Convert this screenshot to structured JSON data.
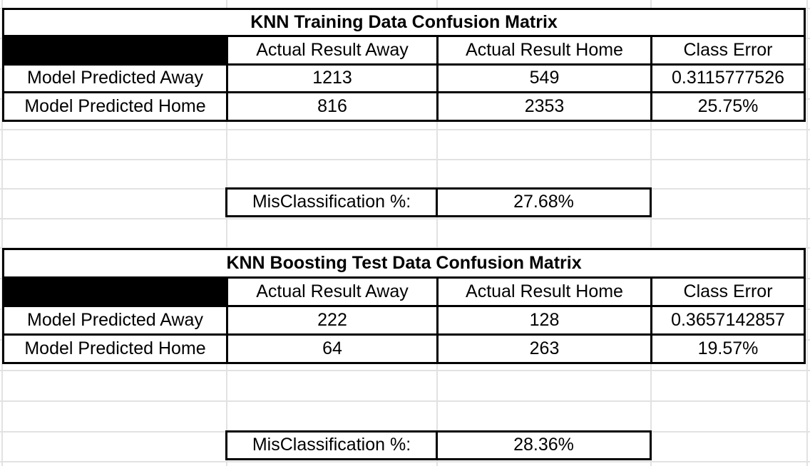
{
  "sheet": {
    "background_color": "#ffffff",
    "gridline_color": "#e2e2e2",
    "table_border_color": "#000000",
    "corner_cell_fill": "#000000"
  },
  "tables": [
    {
      "title": "KNN Training Data Confusion Matrix",
      "column_headers": [
        "",
        "Actual Result Away",
        "Actual Result Home",
        "Class Error"
      ],
      "rows": [
        {
          "label": "Model Predicted Away",
          "values": [
            "1213",
            "549",
            "0.3115777526"
          ]
        },
        {
          "label": "Model Predicted Home",
          "values": [
            "816",
            "2353",
            "25.75%"
          ]
        }
      ],
      "summary": {
        "label": "MisClassification %:",
        "value": "27.68%"
      }
    },
    {
      "title": "KNN Boosting Test Data Confusion Matrix",
      "column_headers": [
        "",
        "Actual Result Away",
        "Actual Result Home",
        "Class Error"
      ],
      "rows": [
        {
          "label": "Model Predicted Away",
          "values": [
            "222",
            "128",
            "0.3657142857"
          ]
        },
        {
          "label": "Model Predicted Home",
          "values": [
            "64",
            "263",
            "19.57%"
          ]
        }
      ],
      "summary": {
        "label": "MisClassification %:",
        "value": "28.36%"
      }
    }
  ]
}
